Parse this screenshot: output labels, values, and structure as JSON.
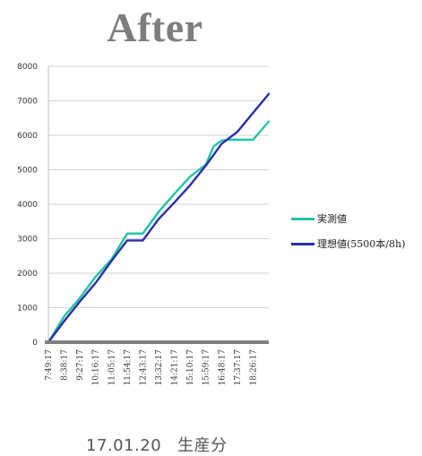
{
  "chart_data": {
    "type": "line",
    "title": "After",
    "caption_date": "17.01.20",
    "caption_text": "生産分",
    "ylim": [
      0,
      8000
    ],
    "yticks": [
      0,
      1000,
      2000,
      3000,
      4000,
      5000,
      6000,
      7000,
      8000
    ],
    "categories": [
      "7:49:17",
      "8:38:17",
      "9:27:17",
      "10:16:17",
      "11:05:17",
      "11:54:17",
      "12:43:17",
      "13:32:17",
      "14:21:17",
      "15:10:17",
      "15:59:17",
      "16:48:17",
      "17:37:17",
      "18:26:17"
    ],
    "grid": true,
    "legend_position": "right",
    "series": [
      {
        "name": "実測値",
        "color": "#22c3a0",
        "points": [
          [
            0,
            0
          ],
          [
            1,
            750
          ],
          [
            2,
            1280
          ],
          [
            3,
            1900
          ],
          [
            4,
            2400
          ],
          [
            5,
            3150
          ],
          [
            6,
            3150
          ],
          [
            7,
            3780
          ],
          [
            8,
            4300
          ],
          [
            9,
            4800
          ],
          [
            10,
            5150
          ],
          [
            10.5,
            5680
          ],
          [
            11,
            5850
          ],
          [
            11.5,
            5870
          ],
          [
            12,
            5870
          ],
          [
            13,
            5870
          ],
          [
            14,
            6400
          ]
        ]
      },
      {
        "name": "理想値(5500本/8h)",
        "color": "#2b2fa8",
        "points": [
          [
            0,
            0
          ],
          [
            1,
            610
          ],
          [
            2,
            1180
          ],
          [
            3,
            1720
          ],
          [
            4,
            2350
          ],
          [
            5,
            2950
          ],
          [
            6,
            2950
          ],
          [
            7,
            3570
          ],
          [
            8,
            4050
          ],
          [
            9,
            4550
          ],
          [
            10,
            5120
          ],
          [
            11,
            5750
          ],
          [
            12,
            6100
          ],
          [
            13,
            6650
          ],
          [
            14,
            7200
          ]
        ]
      }
    ]
  }
}
